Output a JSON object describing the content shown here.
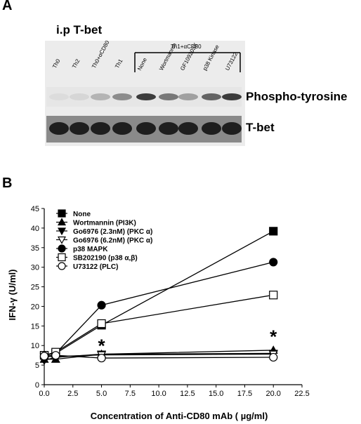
{
  "panel_a": {
    "label": "A",
    "title": "i.p T-bet",
    "group_label": "Th1+αCD80",
    "lanes": [
      "Th0",
      "Th2",
      "Th0+αCD80",
      "Th1",
      "None",
      "Wortmannin",
      "GF109203X",
      "p38 Kinase",
      "U73122"
    ],
    "band_labels": [
      "Phospho-tyrosine",
      "T-bet"
    ],
    "phospho_intensity": [
      0.05,
      0.08,
      0.25,
      0.45,
      0.85,
      0.55,
      0.35,
      0.65,
      0.85
    ]
  },
  "panel_b": {
    "label": "B"
  },
  "chart_data": {
    "type": "line",
    "xlabel": "Concentration of Anti-CD80 mAb ( µg/ml)",
    "ylabel": "IFN-γ (U/ml)",
    "xlim": [
      0,
      22.5
    ],
    "ylim": [
      0,
      45
    ],
    "xticks": [
      "0.0",
      "2.5",
      "5.0",
      "7.5",
      "10.0",
      "12.5",
      "15.0",
      "17.5",
      "20.0",
      "22.5"
    ],
    "yticks": [
      "0",
      "5",
      "10",
      "15",
      "20",
      "25",
      "30",
      "35",
      "40",
      "45"
    ],
    "x": [
      0,
      1,
      5,
      20
    ],
    "legend_position": "top-left",
    "series": [
      {
        "name": "None",
        "marker": "square-filled",
        "values": [
          7.5,
          8.0,
          15.2,
          39.2
        ]
      },
      {
        "name": "Wortmannin (PI3K)",
        "marker": "triangle-up-filled",
        "values": [
          6.5,
          6.5,
          7.8,
          8.8
        ]
      },
      {
        "name": "Go6976 (2.3nM) (PKC α)",
        "marker": "triangle-down-filled",
        "values": [
          6.2,
          7.0,
          7.8,
          8.0
        ]
      },
      {
        "name": "Go6976 (6.2nM) (PKC α)",
        "marker": "triangle-down-open",
        "values": [
          7.2,
          7.2,
          7.6,
          7.8
        ]
      },
      {
        "name": "p38 MAPK",
        "marker": "circle-filled",
        "values": [
          7.5,
          8.0,
          20.3,
          31.3
        ]
      },
      {
        "name": "SB202190 (p38 α,β)",
        "marker": "square-open",
        "values": [
          7.5,
          8.3,
          15.6,
          22.9
        ]
      },
      {
        "name": "U73122 (PLC)",
        "marker": "circle-open",
        "values": [
          7.3,
          7.5,
          6.8,
          7.0
        ]
      }
    ],
    "annotations": [
      {
        "text": "*",
        "x": 5,
        "y": 10.5
      },
      {
        "text": "*",
        "x": 20,
        "y": 12.8
      }
    ]
  }
}
